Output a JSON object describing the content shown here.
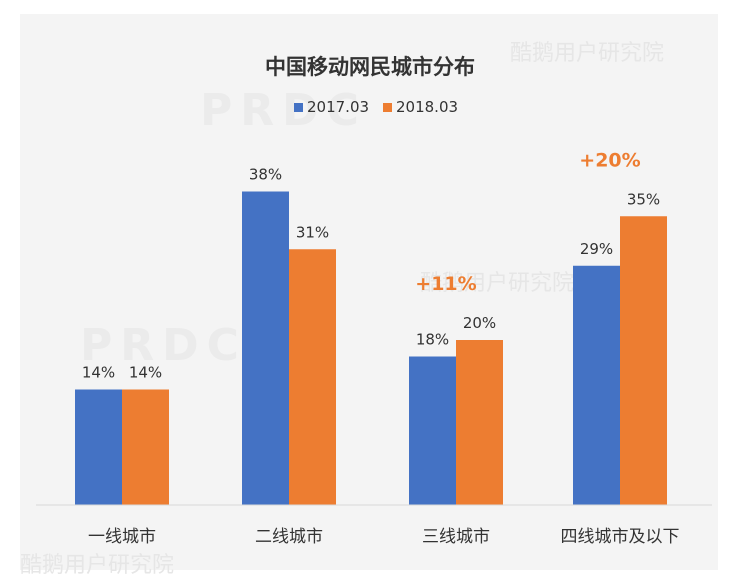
{
  "chart_data": {
    "type": "bar",
    "title": "中国移动网民城市分布",
    "categories": [
      "一线城市",
      "二线城市",
      "三线城市",
      "四线城市及以下"
    ],
    "series": [
      {
        "name": "2017.03",
        "values": [
          14,
          38,
          18,
          29
        ],
        "labels": [
          "14%",
          "38%",
          "18%",
          "29%"
        ]
      },
      {
        "name": "2018.03",
        "values": [
          14,
          31,
          20,
          35
        ],
        "labels": [
          "14%",
          "31%",
          "20%",
          "35%"
        ]
      }
    ],
    "ylim": [
      0,
      40
    ],
    "unit": "%",
    "grid": false,
    "legend_position": "top-center",
    "annotations": [
      {
        "category": "三线城市",
        "text": "+11%"
      },
      {
        "category": "四线城市及以下",
        "text": "+20%"
      }
    ],
    "colors": {
      "2017.03": "#4472c4",
      "2018.03": "#ed7d31",
      "annotation": "#ed7d31"
    }
  },
  "watermarks": [
    "酷鹅用户研究院",
    "PRDC"
  ]
}
